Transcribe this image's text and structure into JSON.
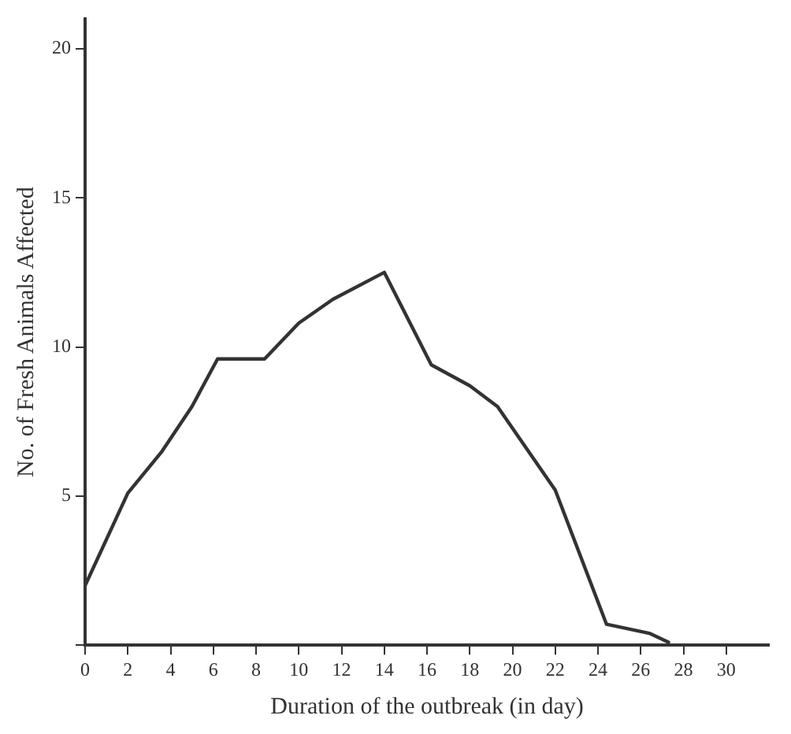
{
  "chart_data": {
    "type": "line",
    "xlabel": "Duration of the outbreak (in day)",
    "ylabel": "No. of Fresh Animals Affected",
    "x": [
      0,
      2,
      3.6,
      5,
      6.2,
      8.4,
      10,
      11.6,
      14,
      16.2,
      18,
      19.3,
      22,
      24.4,
      26.4,
      27.3
    ],
    "series": [
      {
        "color": "#333333",
        "values": [
          2,
          5.1,
          6.5,
          8,
          9.6,
          9.6,
          10.8,
          11.6,
          12.5,
          9.4,
          8.7,
          8,
          5.2,
          0.7,
          0.4,
          0.1
        ]
      }
    ],
    "xlim": [
      0,
      32
    ],
    "xticks": [
      0,
      2,
      4,
      6,
      8,
      10,
      12,
      14,
      16,
      18,
      20,
      22,
      24,
      26,
      28,
      30
    ],
    "ylim": [
      0,
      21
    ],
    "yticks": [
      {
        "value": 0,
        "label": null
      },
      5,
      10,
      15,
      20
    ],
    "grid": false,
    "legend": false,
    "marker": "none",
    "line_style": "solid"
  }
}
